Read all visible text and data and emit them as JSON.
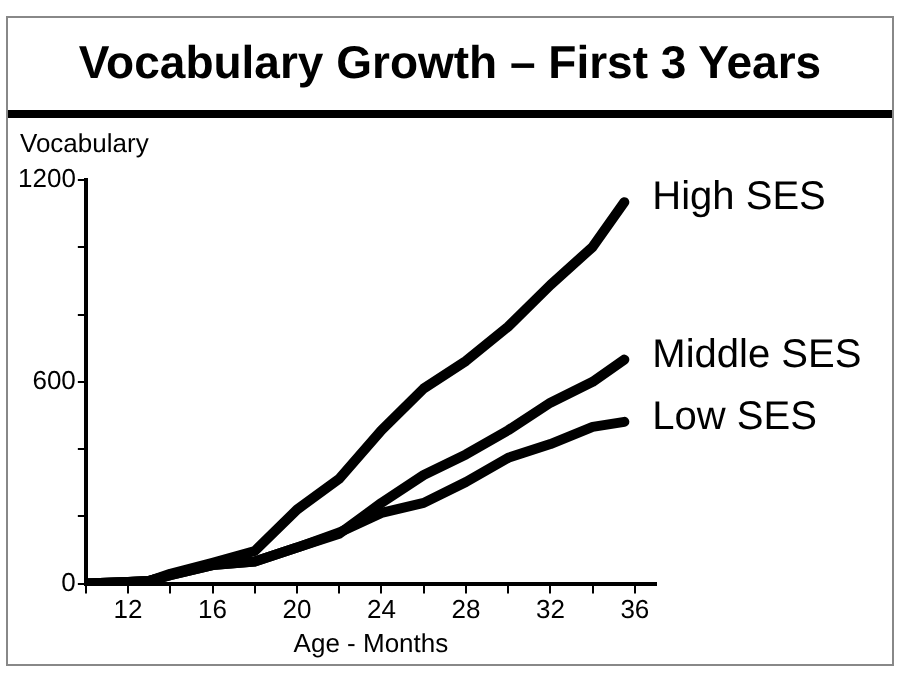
{
  "chart_data": {
    "type": "line",
    "title": "Vocabulary Growth – First 3 Years",
    "xlabel": "Age - Months",
    "ylabel": "Vocabulary",
    "x": [
      10,
      12,
      13,
      14,
      16,
      18,
      20,
      22,
      24,
      26,
      28,
      30,
      32,
      34,
      35.5
    ],
    "series": [
      {
        "name": "High SES",
        "color": "#000000",
        "values": [
          0,
          5,
          8,
          29,
          62,
          97,
          220,
          312,
          456,
          580,
          662,
          764,
          888,
          1001,
          1134
        ]
      },
      {
        "name": "Middle SES",
        "color": "#000000",
        "values": [
          0,
          5,
          8,
          25,
          55,
          66,
          107,
          148,
          240,
          323,
          384,
          456,
          538,
          600,
          666
        ]
      },
      {
        "name": "Low SES",
        "color": "#000000",
        "values": [
          0,
          5,
          8,
          25,
          55,
          66,
          107,
          152,
          210,
          240,
          302,
          374,
          415,
          466,
          481
        ]
      }
    ],
    "xlim": [
      10,
      37
    ],
    "xticks": [
      {
        "value": 10,
        "label": null
      },
      12,
      {
        "value": 14,
        "label": null
      },
      16,
      {
        "value": 18,
        "label": null
      },
      20,
      {
        "value": 22,
        "label": null
      },
      24,
      {
        "value": 26,
        "label": null
      },
      28,
      {
        "value": 30,
        "label": null
      },
      32,
      {
        "value": 34,
        "label": null
      },
      36
    ],
    "ylim": [
      0,
      1200
    ],
    "yticks": [
      0,
      {
        "value": 200,
        "label": null
      },
      {
        "value": 400,
        "label": null
      },
      600,
      {
        "value": 800,
        "label": null
      },
      {
        "value": 1000,
        "label": null
      },
      1200
    ],
    "grid": false,
    "legend": false,
    "marker": "none",
    "line_style": "solid"
  }
}
